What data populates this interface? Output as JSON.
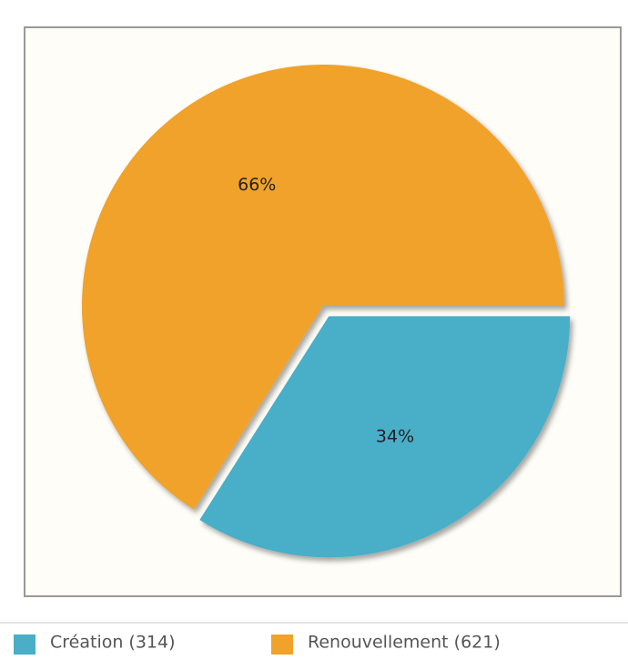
{
  "chart_data": {
    "type": "pie",
    "categories": [
      "Création (314)",
      "Renouvellement (621)"
    ],
    "values": [
      34,
      66
    ],
    "value_labels": [
      "34%",
      "66%"
    ],
    "colors": [
      "#4aaec8",
      "#f0a22a"
    ],
    "legend": "bottom"
  }
}
